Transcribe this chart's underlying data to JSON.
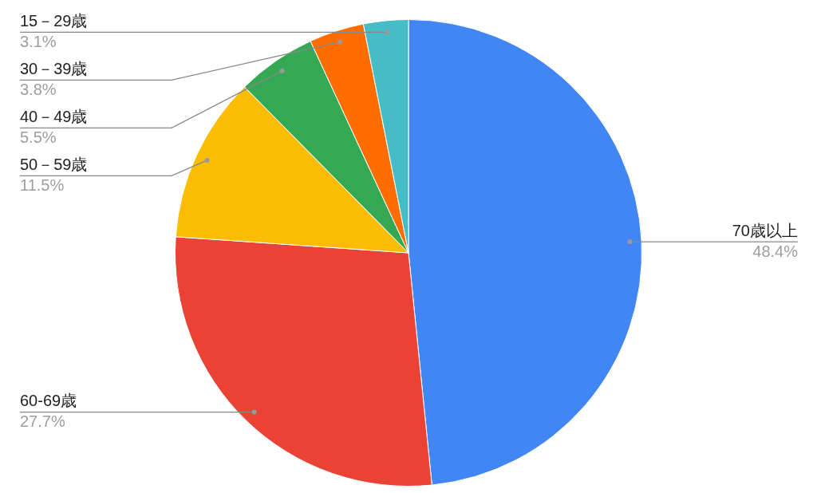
{
  "chart_data": {
    "type": "pie",
    "categories": [
      "70歳以上",
      "60-69歳",
      "50－59歳",
      "40－49歳",
      "30－39歳",
      "15－29歳"
    ],
    "values": [
      48.4,
      27.7,
      11.5,
      5.5,
      3.8,
      3.1
    ],
    "value_labels": [
      "48.4%",
      "27.7%",
      "11.5%",
      "5.5%",
      "3.8%",
      "3.1%"
    ],
    "colors": [
      "#4285f4",
      "#ea4335",
      "#fbbc04",
      "#34a853",
      "#ff6d01",
      "#46bdc6"
    ],
    "legend": false
  }
}
